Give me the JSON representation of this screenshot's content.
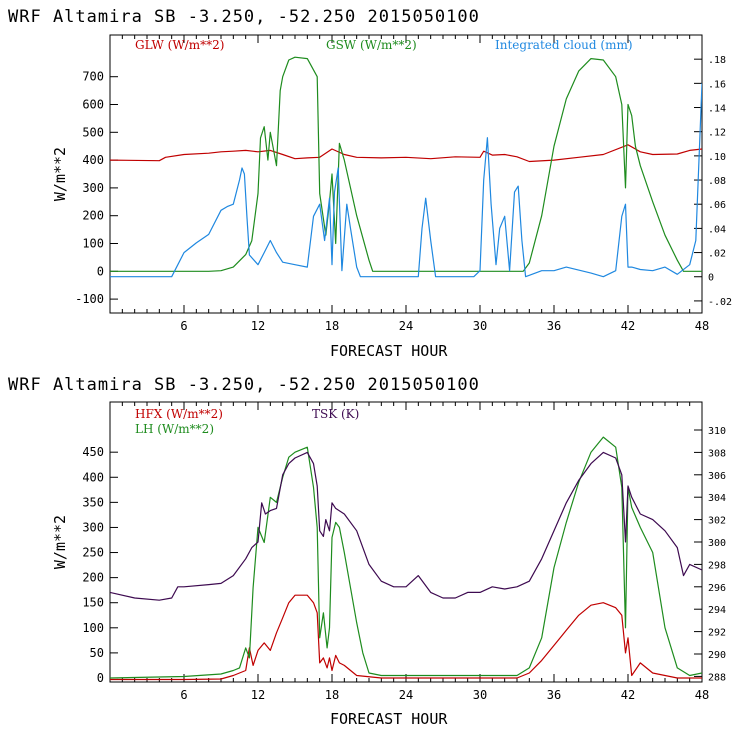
{
  "chart_data": [
    {
      "type": "line",
      "title": "WRF   Altamira  SB  -3.250, -52.250  2015050100",
      "xlabel": "FORECAST HOUR",
      "ylabel": "W/m**2",
      "xlim": [
        0,
        48
      ],
      "xticks": [
        6,
        12,
        18,
        24,
        30,
        36,
        42,
        48
      ],
      "ylim": [
        -150,
        850
      ],
      "yticks": [
        -100,
        0,
        100,
        200,
        300,
        400,
        500,
        600,
        700
      ],
      "y2lim": [
        -0.03,
        0.2
      ],
      "y2ticks": [
        -0.02,
        0,
        0.02,
        0.04,
        0.06,
        0.08,
        0.1,
        0.12,
        0.14,
        0.16,
        0.18
      ],
      "y2ticklabels": [
        "-.02",
        "0",
        ".02",
        ".04",
        ".06",
        ".08",
        ".10",
        ".12",
        ".14",
        ".16",
        ".18"
      ],
      "legend": [
        {
          "label": "GLW (W/m**2)",
          "color": "#c00000"
        },
        {
          "label": "GSW (W/m**2)",
          "color": "#1e8c1e"
        },
        {
          "label": "Integrated cloud (mm)",
          "color": "#1f88e0"
        }
      ],
      "series": [
        {
          "name": "GLW (W/m**2)",
          "axis": "left",
          "color": "#c00000",
          "x": [
            0,
            4,
            4.5,
            6,
            8,
            9,
            10,
            11,
            12,
            13,
            14,
            15,
            16,
            17,
            18,
            19,
            20,
            22,
            24,
            26,
            28,
            30,
            30.3,
            31,
            32,
            33,
            34,
            36,
            38,
            40,
            42,
            43,
            44,
            46,
            47,
            48
          ],
          "y": [
            400,
            398,
            410,
            420,
            425,
            430,
            432,
            435,
            430,
            435,
            420,
            405,
            408,
            410,
            440,
            420,
            410,
            408,
            410,
            405,
            412,
            410,
            432,
            418,
            420,
            412,
            395,
            400,
            410,
            420,
            455,
            430,
            420,
            422,
            435,
            440
          ]
        },
        {
          "name": "GSW (W/m**2)",
          "axis": "left",
          "color": "#1e8c1e",
          "x": [
            0,
            8,
            9,
            10,
            11,
            11.5,
            12,
            12.2,
            12.5,
            12.8,
            13,
            13.5,
            13.8,
            14,
            14.5,
            15,
            16,
            16.8,
            17,
            17.5,
            17.8,
            18,
            18.3,
            18.6,
            19,
            19.5,
            20,
            21,
            21.3,
            33.5,
            34,
            35,
            36,
            37,
            38,
            39,
            40,
            41,
            41.5,
            41.8,
            42,
            42.3,
            42.6,
            43,
            44,
            45,
            46,
            46.5,
            48
          ],
          "y": [
            0,
            0,
            2,
            15,
            60,
            110,
            280,
            480,
            520,
            400,
            500,
            380,
            650,
            700,
            760,
            770,
            765,
            700,
            280,
            130,
            250,
            350,
            100,
            460,
            400,
            300,
            200,
            40,
            0,
            0,
            30,
            200,
            450,
            620,
            720,
            765,
            760,
            700,
            600,
            300,
            600,
            560,
            450,
            380,
            250,
            130,
            40,
            0,
            0
          ]
        },
        {
          "name": "Integrated cloud (mm)",
          "axis": "right",
          "color": "#1f88e0",
          "x": [
            0,
            5,
            6,
            7,
            8,
            9,
            9.5,
            10,
            10.5,
            10.7,
            10.9,
            11.1,
            11.3,
            12,
            12.5,
            13,
            13.5,
            14,
            15,
            16,
            16.5,
            17,
            17.4,
            17.8,
            18,
            18.2,
            18.5,
            18.8,
            19.2,
            19.5,
            20,
            20.3,
            25,
            25.3,
            25.6,
            26,
            26.4,
            29.5,
            30,
            30.3,
            30.6,
            30.9,
            31.3,
            31.6,
            32,
            32.4,
            32.8,
            33.1,
            33.4,
            33.7,
            35,
            36,
            37,
            39,
            40,
            41,
            41.5,
            41.8,
            42,
            42.3,
            43,
            44,
            45,
            46,
            47,
            47.5,
            48
          ],
          "y": [
            0,
            0,
            0.02,
            0.028,
            0.035,
            0.055,
            0.058,
            0.06,
            0.08,
            0.09,
            0.085,
            0.05,
            0.018,
            0.01,
            0.02,
            0.03,
            0.02,
            0.012,
            0.01,
            0.008,
            0.05,
            0.06,
            0.03,
            0.065,
            0.01,
            0.07,
            0.09,
            0.005,
            0.06,
            0.04,
            0.008,
            0,
            0,
            0.04,
            0.065,
            0.03,
            0,
            0,
            0.005,
            0.08,
            0.115,
            0.06,
            0.01,
            0.04,
            0.05,
            0.005,
            0.07,
            0.075,
            0.03,
            0,
            0.005,
            0.005,
            0.008,
            0.003,
            0,
            0.005,
            0.05,
            0.06,
            0.008,
            0.008,
            0.006,
            0.005,
            0.008,
            0.002,
            0.01,
            0.03,
            0.16
          ]
        }
      ]
    },
    {
      "type": "line",
      "title": "WRF   Altamira  SB  -3.250, -52.250  2015050100",
      "xlabel": "FORECAST HOUR",
      "ylabel": "W/m**2",
      "xlim": [
        0,
        48
      ],
      "xticks": [
        6,
        12,
        18,
        24,
        30,
        36,
        42,
        48
      ],
      "ylim": [
        -8,
        550
      ],
      "yticks": [
        0,
        50,
        100,
        150,
        200,
        250,
        300,
        350,
        400,
        450
      ],
      "y2lim": [
        287.5,
        312.5
      ],
      "y2ticks": [
        288,
        290,
        292,
        294,
        296,
        298,
        300,
        302,
        304,
        306,
        308,
        310
      ],
      "y2ticklabels": [
        "288",
        "290",
        "292",
        "294",
        "296",
        "298",
        "300",
        "302",
        "304",
        "306",
        "308",
        "310"
      ],
      "legend": [
        {
          "label": "HFX (W/m**2)",
          "color": "#c00000"
        },
        {
          "label": "LH  (W/m**2)",
          "color": "#1e8c1e"
        },
        {
          "label": "TSK (K)",
          "color": "#3d0a50"
        }
      ],
      "series": [
        {
          "name": "HFX (W/m**2)",
          "axis": "left",
          "color": "#c00000",
          "x": [
            0,
            6,
            9,
            10,
            10.5,
            11,
            11.3,
            11.6,
            12,
            12.5,
            13,
            13.5,
            14,
            14.5,
            15,
            16,
            16.5,
            16.8,
            17,
            17.3,
            17.6,
            17.8,
            18,
            18.3,
            18.6,
            19,
            20,
            22,
            30,
            33,
            34,
            35,
            36,
            37,
            38,
            39,
            40,
            41,
            41.5,
            41.8,
            42,
            42.3,
            43,
            44,
            45,
            46,
            48
          ],
          "y": [
            -3,
            -3,
            -2,
            5,
            10,
            15,
            60,
            25,
            55,
            70,
            55,
            90,
            120,
            150,
            165,
            165,
            150,
            130,
            30,
            40,
            20,
            40,
            15,
            45,
            30,
            25,
            5,
            0,
            0,
            0,
            10,
            35,
            65,
            95,
            125,
            145,
            150,
            140,
            125,
            50,
            80,
            5,
            30,
            10,
            5,
            0,
            0
          ]
        },
        {
          "name": "LH  (W/m**2)",
          "axis": "left",
          "color": "#1e8c1e",
          "x": [
            0,
            6,
            9,
            10,
            10.5,
            11,
            11.3,
            11.6,
            12,
            12.5,
            13,
            13.5,
            14,
            14.5,
            15,
            16,
            16.5,
            16.8,
            17,
            17.3,
            17.6,
            17.8,
            18,
            18.3,
            18.6,
            19,
            19.5,
            20,
            20.5,
            21,
            22,
            30,
            33,
            34,
            35,
            36,
            37,
            38,
            39,
            40,
            41,
            41.5,
            41.8,
            42,
            42.3,
            43,
            44,
            45,
            46,
            47,
            48
          ],
          "y": [
            0,
            3,
            8,
            15,
            20,
            60,
            40,
            180,
            300,
            270,
            360,
            350,
            400,
            440,
            450,
            460,
            380,
            300,
            80,
            130,
            60,
            100,
            280,
            310,
            300,
            250,
            180,
            110,
            50,
            10,
            5,
            5,
            5,
            20,
            80,
            220,
            310,
            390,
            450,
            480,
            460,
            380,
            100,
            380,
            340,
            300,
            250,
            100,
            20,
            5,
            10
          ]
        },
        {
          "name": "TSK (K)",
          "axis": "right",
          "color": "#3d0a50",
          "x": [
            0,
            2,
            4,
            5,
            5.5,
            6,
            8,
            9,
            10,
            11,
            11.5,
            12,
            12.3,
            12.6,
            13,
            13.5,
            14,
            14.5,
            15,
            16,
            16.5,
            16.8,
            17,
            17.3,
            17.5,
            17.8,
            18,
            18.3,
            19,
            20,
            21,
            22,
            23,
            24,
            25,
            26,
            27,
            28,
            29,
            30,
            31,
            32,
            33,
            34,
            35,
            36,
            37,
            38,
            39,
            40,
            41,
            41.5,
            41.8,
            42,
            42.3,
            43,
            44,
            45,
            46,
            46.5,
            47,
            48
          ],
          "y": [
            295.5,
            295,
            294.8,
            295,
            296,
            296,
            296.2,
            296.3,
            297,
            298.5,
            299.5,
            300,
            303.5,
            302.5,
            302.8,
            303,
            306,
            307,
            307.5,
            308,
            307,
            305,
            301,
            300.5,
            302,
            301,
            303.5,
            303,
            302.5,
            301,
            298,
            296.5,
            296,
            296,
            297,
            295.5,
            295,
            295,
            295.5,
            295.5,
            296,
            295.8,
            296,
            296.5,
            298.5,
            301,
            303.5,
            305.5,
            307,
            308,
            307.5,
            306,
            300,
            305,
            304,
            302.5,
            302,
            301,
            299.5,
            297,
            298,
            297.5
          ]
        }
      ]
    }
  ]
}
